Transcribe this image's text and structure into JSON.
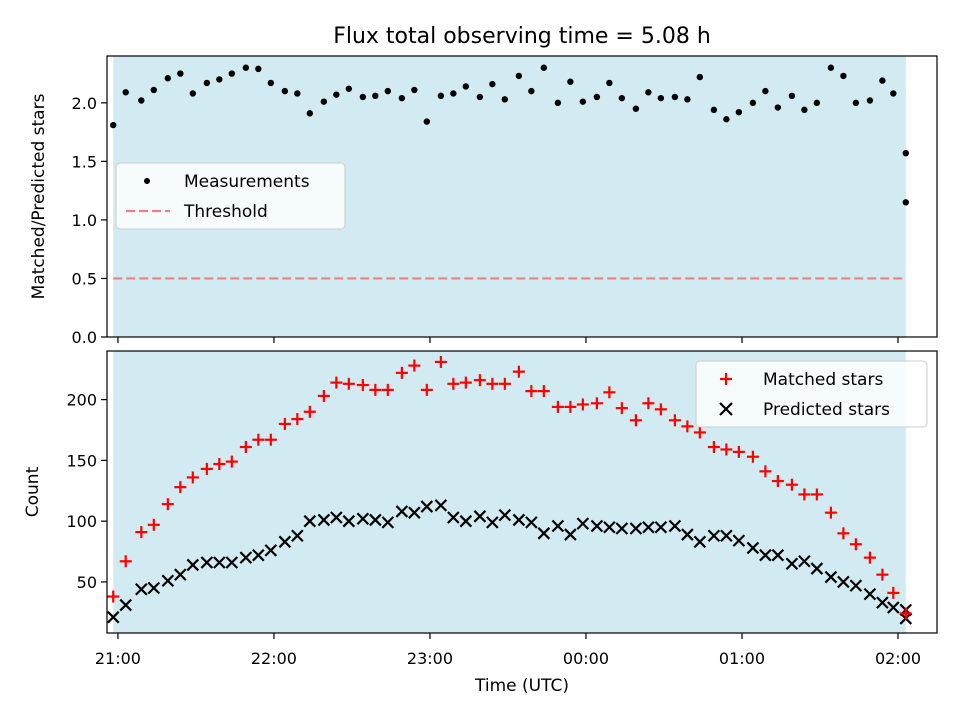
{
  "chart_data": [
    {
      "type": "scatter",
      "title": "Flux total observing time = 5.08 h",
      "ylabel": "Matched/Predicted stars",
      "xlim": [
        20.93,
        26.25
      ],
      "ylim": [
        0.0,
        2.4
      ],
      "yticks": [
        "0.0",
        "0.5",
        "1.0",
        "1.5",
        "2.0"
      ],
      "ytick_values": [
        0.0,
        0.5,
        1.0,
        1.5,
        2.0
      ],
      "shaded_region": [
        20.97,
        26.05
      ],
      "shade_color": "#add8e6",
      "threshold": 0.5,
      "legend_position": "center-left",
      "series": [
        {
          "name": "Measurements",
          "color": "#000000",
          "x": [
            20.97,
            21.05,
            21.15,
            21.23,
            21.32,
            21.4,
            21.48,
            21.57,
            21.65,
            21.73,
            21.82,
            21.9,
            21.98,
            22.07,
            22.15,
            22.23,
            22.32,
            22.4,
            22.48,
            22.57,
            22.65,
            22.73,
            22.82,
            22.9,
            22.98,
            23.07,
            23.15,
            23.23,
            23.32,
            23.4,
            23.48,
            23.57,
            23.65,
            23.73,
            23.82,
            23.9,
            23.98,
            24.07,
            24.15,
            24.23,
            24.32,
            24.4,
            24.48,
            24.57,
            24.65,
            24.73,
            24.82,
            24.9,
            24.98,
            25.07,
            25.15,
            25.23,
            25.32,
            25.4,
            25.48,
            25.57,
            25.65,
            25.73,
            25.82,
            25.9,
            25.97,
            26.05
          ],
          "y": [
            1.81,
            2.09,
            2.02,
            2.11,
            2.21,
            2.25,
            2.08,
            2.17,
            2.2,
            2.25,
            2.3,
            2.29,
            2.17,
            2.1,
            2.08,
            1.91,
            2.01,
            2.07,
            2.12,
            2.05,
            2.06,
            2.1,
            2.04,
            2.11,
            1.84,
            2.06,
            2.08,
            2.14,
            2.05,
            2.16,
            2.03,
            2.23,
            2.1,
            2.3,
            2.0,
            2.18,
            2.01,
            2.05,
            2.17,
            2.04,
            1.95,
            2.09,
            2.04,
            2.05,
            2.03,
            2.22,
            1.94,
            1.86,
            1.92,
            2.0,
            2.1,
            1.96,
            2.06,
            1.94,
            2.0,
            2.3,
            2.23,
            2.0,
            2.02,
            2.19,
            2.08,
            1.57
          ]
        },
        {
          "name": "Threshold",
          "color": "#f08080",
          "style": "dashed"
        }
      ],
      "extra_point": {
        "x": 26.05,
        "y": 1.15
      }
    },
    {
      "type": "scatter",
      "ylabel": "Count",
      "xlabel": "Time (UTC)",
      "xlim": [
        20.93,
        26.25
      ],
      "ylim": [
        8,
        240
      ],
      "yticks": [
        "50",
        "100",
        "150",
        "200"
      ],
      "ytick_values": [
        50,
        100,
        150,
        200
      ],
      "xticks": [
        "21:00",
        "22:00",
        "23:00",
        "00:00",
        "01:00",
        "02:00"
      ],
      "xtick_values": [
        21,
        22,
        23,
        24,
        25,
        26
      ],
      "shaded_region": [
        20.97,
        26.05
      ],
      "shade_color": "#add8e6",
      "legend_position": "top-right",
      "series": [
        {
          "name": "Matched stars",
          "color": "#ff0000",
          "marker": "plus",
          "x": [
            20.97,
            21.05,
            21.15,
            21.23,
            21.32,
            21.4,
            21.48,
            21.57,
            21.65,
            21.73,
            21.82,
            21.9,
            21.98,
            22.07,
            22.15,
            22.23,
            22.32,
            22.4,
            22.48,
            22.57,
            22.65,
            22.73,
            22.82,
            22.9,
            22.98,
            23.07,
            23.15,
            23.23,
            23.32,
            23.4,
            23.48,
            23.57,
            23.65,
            23.73,
            23.82,
            23.9,
            23.98,
            24.07,
            24.15,
            24.23,
            24.32,
            24.4,
            24.48,
            24.57,
            24.65,
            24.73,
            24.82,
            24.9,
            24.98,
            25.07,
            25.15,
            25.23,
            25.32,
            25.4,
            25.48,
            25.57,
            25.65,
            25.73,
            25.82,
            25.9,
            25.97,
            26.05
          ],
          "y": [
            38,
            67,
            91,
            97,
            114,
            128,
            136,
            143,
            147,
            149,
            161,
            167,
            167,
            180,
            184,
            190,
            203,
            214,
            213,
            212,
            208,
            208,
            222,
            228,
            208,
            231,
            213,
            214,
            216,
            213,
            213,
            223,
            207,
            207,
            194,
            194,
            196,
            197,
            206,
            193,
            183,
            197,
            192,
            183,
            178,
            173,
            161,
            159,
            157,
            153,
            141,
            133,
            130,
            122,
            122,
            107,
            90,
            81,
            70,
            56,
            41,
            24
          ]
        },
        {
          "name": "Predicted stars",
          "color": "#000000",
          "marker": "x",
          "x": [
            20.97,
            21.05,
            21.15,
            21.23,
            21.32,
            21.4,
            21.48,
            21.57,
            21.65,
            21.73,
            21.82,
            21.9,
            21.98,
            22.07,
            22.15,
            22.23,
            22.32,
            22.4,
            22.48,
            22.57,
            22.65,
            22.73,
            22.82,
            22.9,
            22.98,
            23.07,
            23.15,
            23.23,
            23.32,
            23.4,
            23.48,
            23.57,
            23.65,
            23.73,
            23.82,
            23.9,
            23.98,
            24.07,
            24.15,
            24.23,
            24.32,
            24.4,
            24.48,
            24.57,
            24.65,
            24.73,
            24.82,
            24.9,
            24.98,
            25.07,
            25.15,
            25.23,
            25.32,
            25.4,
            25.48,
            25.57,
            25.65,
            25.73,
            25.82,
            25.9,
            25.97,
            26.05
          ],
          "y": [
            21,
            31,
            44,
            45,
            51,
            56,
            64,
            66,
            66,
            66,
            70,
            72,
            76,
            83,
            88,
            100,
            101,
            103,
            100,
            102,
            101,
            99,
            108,
            107,
            112,
            113,
            103,
            100,
            104,
            99,
            105,
            101,
            99,
            90,
            96,
            89,
            98,
            96,
            95,
            94,
            94,
            95,
            95,
            96,
            89,
            83,
            88,
            88,
            84,
            78,
            72,
            72,
            65,
            67,
            61,
            54,
            50,
            47,
            40,
            33,
            29,
            27
          ]
        }
      ],
      "extra_point": {
        "x": 26.05,
        "y": 20
      }
    }
  ]
}
